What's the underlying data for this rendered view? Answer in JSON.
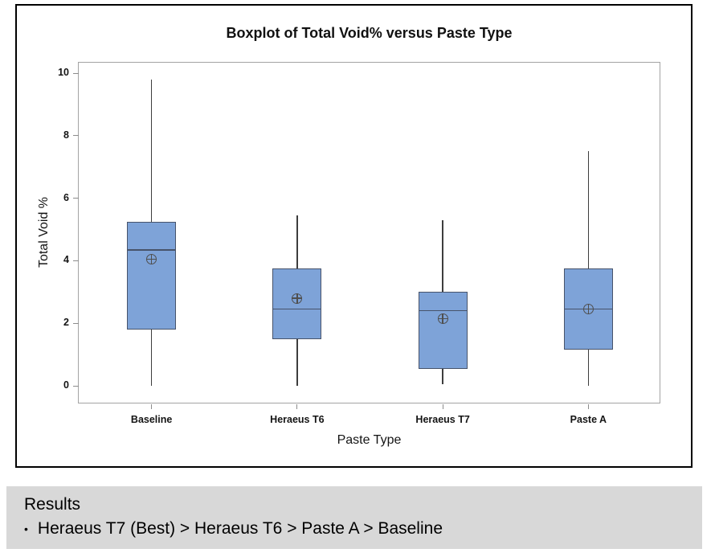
{
  "chart_data": {
    "type": "boxplot",
    "title": "Boxplot of Total Void% versus Paste Type",
    "xlabel": "Paste Type",
    "ylabel": "Total Void %",
    "ylim": [
      0,
      10
    ],
    "yticks": [
      0,
      2,
      4,
      6,
      8,
      10
    ],
    "grid": false,
    "legend": "none",
    "categories": [
      "Baseline",
      "Heraeus T6",
      "Heraeus T7",
      "Paste A"
    ],
    "series": [
      {
        "name": "Baseline",
        "whisker_low": 0.0,
        "q1": 1.8,
        "median": 4.35,
        "q3": 5.25,
        "whisker_high": 9.8,
        "mean": 4.05
      },
      {
        "name": "Heraeus T6",
        "whisker_low": 0.0,
        "q1": 1.5,
        "median": 2.45,
        "q3": 3.75,
        "whisker_high": 5.45,
        "mean": 2.8
      },
      {
        "name": "Heraeus T7",
        "whisker_low": 0.05,
        "q1": 0.55,
        "median": 2.4,
        "q3": 3.0,
        "whisker_high": 5.3,
        "mean": 2.15
      },
      {
        "name": "Paste A",
        "whisker_low": 0.0,
        "q1": 1.15,
        "median": 2.45,
        "q3": 3.75,
        "whisker_high": 7.5,
        "mean": 2.45
      }
    ],
    "colors": {
      "box_fill": "#7EA3D8",
      "box_border": "#47536A",
      "whisker": "#3D3D3D",
      "mean_marker": "#4F4F4F",
      "plot_frame": "#A3A3A3",
      "figure_border": "#000000"
    }
  },
  "results": {
    "heading": "Results",
    "bullet_glyph": "•",
    "items": [
      "Heraeus T7 (Best) > Heraeus T6 > Paste A > Baseline"
    ]
  }
}
